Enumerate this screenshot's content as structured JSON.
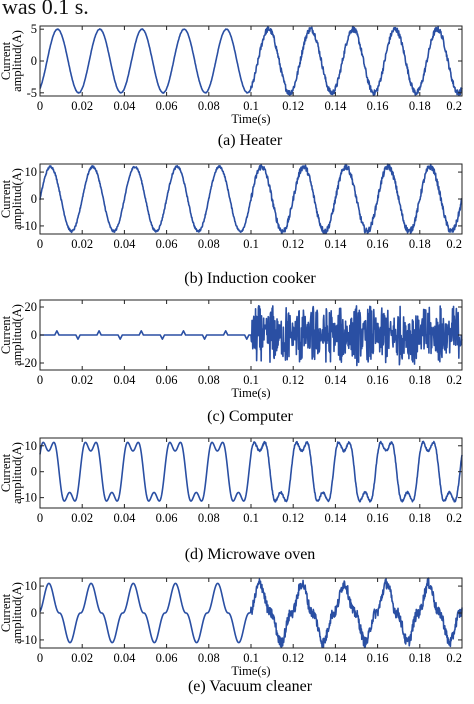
{
  "page": {
    "top_text": "was 0.1 s."
  },
  "chart_data": [
    {
      "type": "line",
      "caption": "(a) Heater",
      "ylabel": [
        "Current",
        "amplitud(A)"
      ],
      "xlabel": "Time(s)",
      "xlim": [
        0,
        0.2
      ],
      "ylim": [
        -5.5,
        5.5
      ],
      "xticks": [
        "0",
        "0.02",
        "0.04",
        "0.06",
        "0.08",
        "0.1",
        "0.12",
        "0.14",
        "0.16",
        "0.18",
        "0.2"
      ],
      "yticks": [
        -5,
        0,
        5
      ],
      "color": "#2a4fa3",
      "signal": {
        "kind": "sine",
        "frequency_hz": 50,
        "amplitude": 5.0,
        "phase_deg": -60,
        "noise_before": 0.05,
        "noise_after": 0.45,
        "event_time_s": 0.1
      }
    },
    {
      "type": "line",
      "caption": "(b) Induction cooker",
      "ylabel": [
        "Current",
        "amplitud(A)"
      ],
      "xlabel": "",
      "xlim": [
        0,
        0.2
      ],
      "ylim": [
        -13,
        13
      ],
      "xticks": [
        "0",
        "0.02",
        "0.04",
        "0.06",
        "0.08",
        "0.1",
        "0.12",
        "0.14",
        "0.16",
        "0.18",
        "0.2"
      ],
      "yticks": [
        -10,
        0,
        10
      ],
      "color": "#2a4fa3",
      "signal": {
        "kind": "sine",
        "frequency_hz": 50,
        "amplitude": 12.0,
        "phase_deg": 0,
        "noise_before": 0.4,
        "noise_after": 1.1,
        "event_time_s": 0.1
      }
    },
    {
      "type": "line",
      "caption": "(c) Computer",
      "ylabel": [
        "Current",
        "amplitud(A)"
      ],
      "xlabel": "Time(s)",
      "xlim": [
        0,
        0.2
      ],
      "ylim": [
        -25,
        25
      ],
      "xticks": [
        "0",
        "0.02",
        "0.04",
        "0.06",
        "0.08",
        "0.1",
        "0.12",
        "0.14",
        "0.16",
        "0.18",
        "0.2"
      ],
      "yticks": [
        -20,
        0,
        20
      ],
      "color": "#2a4fa3",
      "signal": {
        "kind": "pulse-then-burst",
        "frequency_hz": 50,
        "pulse_amplitude": 3.0,
        "burst_amplitude": 20.0,
        "event_time_s": 0.1
      }
    },
    {
      "type": "line",
      "caption": "(d) Microwave oven",
      "ylabel": [
        "Current",
        "amplitud(A)"
      ],
      "xlabel": "",
      "xlim": [
        0,
        0.2
      ],
      "ylim": [
        -14,
        13
      ],
      "xticks": [
        "0",
        "0.02",
        "0.04",
        "0.06",
        "0.08",
        "0.1",
        "0.12",
        "0.14",
        "0.16",
        "0.18",
        "0.2"
      ],
      "yticks": [
        -10,
        0,
        10
      ],
      "color": "#2a4fa3",
      "signal": {
        "kind": "distorted-sine",
        "frequency_hz": 50,
        "amplitude": 12.0,
        "harmonic3": 4.0,
        "noise_after": 0.4,
        "event_time_s": 0.1
      }
    },
    {
      "type": "line",
      "caption": "(e) Vacuum cleaner",
      "ylabel": [
        "Current",
        "amplitud(A)"
      ],
      "xlabel": "Time(s)",
      "xlim": [
        0,
        0.2
      ],
      "ylim": [
        -13,
        13
      ],
      "xticks": [
        "0",
        "0.02",
        "0.04",
        "0.06",
        "0.08",
        "0.1",
        "0.12",
        "0.14",
        "0.16",
        "0.18",
        "0.2"
      ],
      "yticks": [
        -10,
        0,
        10
      ],
      "color": "#2a4fa3",
      "signal": {
        "kind": "peaky-sine",
        "frequency_hz": 50,
        "amplitude": 11.0,
        "noise_after": 2.0,
        "event_time_s": 0.1
      }
    }
  ]
}
